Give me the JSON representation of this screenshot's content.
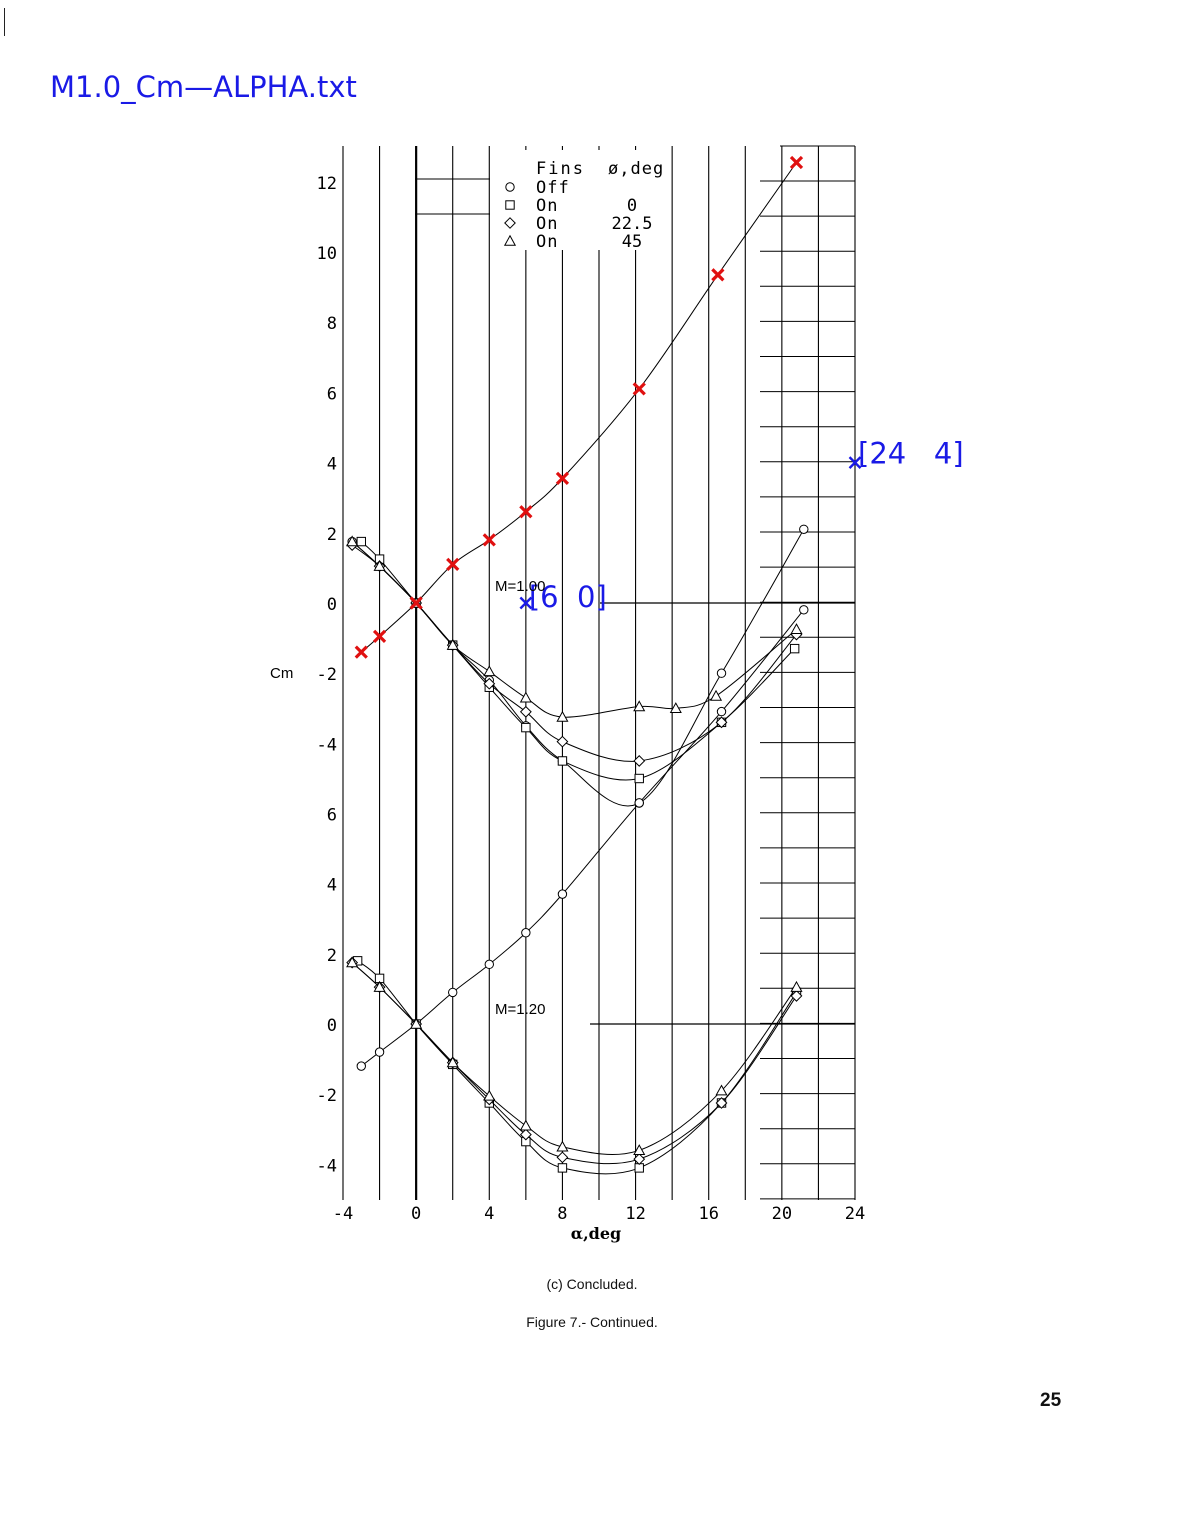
{
  "page": {
    "file_title": "M1.0_Cm—ALPHA.txt",
    "subcaption": "(c) Concluded.",
    "figure_caption": "Figure 7.-  Continued.",
    "page_number": "25"
  },
  "chart_data": {
    "type": "line",
    "title": "",
    "xlabel": "α,deg",
    "ylabel": "Cm",
    "xlim": [
      -4,
      24
    ],
    "x_ticks": [
      "-4",
      "0",
      "4",
      "8",
      "12",
      "16",
      "20",
      "24"
    ],
    "top_panel": {
      "mach_label": "M=1.00",
      "ylim": [
        -5.7,
        12.6
      ],
      "y_ticks": [
        "-4",
        "-2",
        "0",
        "2",
        "4",
        "6",
        "8",
        "10",
        "12"
      ],
      "series": [
        {
          "marker": "circle",
          "x": [
            -3.5,
            -2,
            0,
            2,
            4,
            6,
            8,
            12.2,
            16.7,
            21.2
          ],
          "y": [
            1.75,
            1.05,
            0,
            -1.2,
            -2.2,
            -3.5,
            -4.5,
            -5.7,
            -2,
            2.1
          ]
        },
        {
          "marker": "square",
          "x": [
            -3,
            -2,
            0,
            2,
            4,
            6,
            8,
            12.2,
            16.7,
            20.7
          ],
          "y": [
            1.75,
            1.25,
            0,
            -1.2,
            -2.4,
            -3.55,
            -4.5,
            -5.0,
            -3.4,
            -1.3
          ]
        },
        {
          "marker": "diamond",
          "x": [
            -3.5,
            -2,
            0,
            2,
            4,
            6,
            8,
            12.2,
            16.7,
            20.8
          ],
          "y": [
            1.65,
            1.05,
            0,
            -1.2,
            -2.3,
            -3.1,
            -3.95,
            -4.5,
            -3.4,
            -0.9
          ]
        },
        {
          "marker": "triangle",
          "x": [
            -3.5,
            -2,
            0,
            2,
            4,
            6,
            8,
            12.2,
            14.2,
            16.4,
            20.8
          ],
          "y": [
            1.75,
            1.05,
            0,
            -1.2,
            -1.95,
            -2.7,
            -3.25,
            -2.95,
            -3.0,
            -2.65,
            -0.75
          ]
        }
      ]
    },
    "bottom_panel": {
      "mach_label": "M=1.20",
      "ylim": [
        -4.8,
        4.5
      ],
      "y_ticks": [
        "-4",
        "-2",
        "0",
        "2",
        "4",
        "6"
      ],
      "series": [
        {
          "marker": "circle",
          "x": [
            -3,
            -2,
            0,
            2,
            4,
            6,
            8,
            12.2,
            16.7,
            21.2
          ],
          "y": [
            -1.2,
            -0.8,
            0,
            0.9,
            1.7,
            2.6,
            3.7,
            6.3,
            8.9,
            11.8
          ]
        },
        {
          "marker": "square",
          "x": [
            -3.2,
            -2,
            0,
            2,
            4,
            6,
            8,
            12.2,
            16.7,
            20.8
          ],
          "y": [
            1.8,
            1.3,
            0,
            -1.15,
            -2.25,
            -3.35,
            -4.1,
            -4.1,
            -2.25,
            0.9
          ]
        },
        {
          "marker": "diamond",
          "x": [
            -3.5,
            -2,
            0,
            2,
            4,
            6,
            8,
            12.2,
            16.7,
            20.8
          ],
          "y": [
            1.75,
            1.05,
            0,
            -1.1,
            -2.15,
            -3.15,
            -3.8,
            -3.85,
            -2.25,
            0.8
          ]
        },
        {
          "marker": "triangle",
          "x": [
            -3.5,
            -2,
            0,
            2,
            4,
            6,
            8,
            12.2,
            16.7,
            20.8
          ],
          "y": [
            1.75,
            1.05,
            0,
            -1.1,
            -2.05,
            -2.9,
            -3.5,
            -3.6,
            -1.9,
            1.05
          ]
        }
      ]
    },
    "legend": {
      "header_col1": "Fins",
      "header_col2": "ø,deg",
      "entries": [
        {
          "marker": "circle",
          "fins": "Off",
          "phi": ""
        },
        {
          "marker": "square",
          "fins": "On",
          "phi": "0"
        },
        {
          "marker": "diamond",
          "fins": "On",
          "phi": "22.5"
        },
        {
          "marker": "triangle",
          "fins": "On",
          "phi": "45"
        }
      ]
    },
    "digitized_points": {
      "color": "#e01010",
      "x": [
        -3.0,
        -2.0,
        0,
        2,
        4,
        6,
        8,
        12.2,
        16.5,
        20.8
      ],
      "y": [
        -1.4,
        -0.95,
        0,
        1.1,
        1.8,
        2.6,
        3.55,
        6.1,
        9.35,
        12.55
      ]
    },
    "calibration_markers": {
      "color": "#1a1ae6",
      "points": [
        {
          "label": "[6  0]",
          "x": 6,
          "y": 0
        },
        {
          "label": "[24   4]",
          "x": 24,
          "y": 4
        }
      ]
    }
  }
}
